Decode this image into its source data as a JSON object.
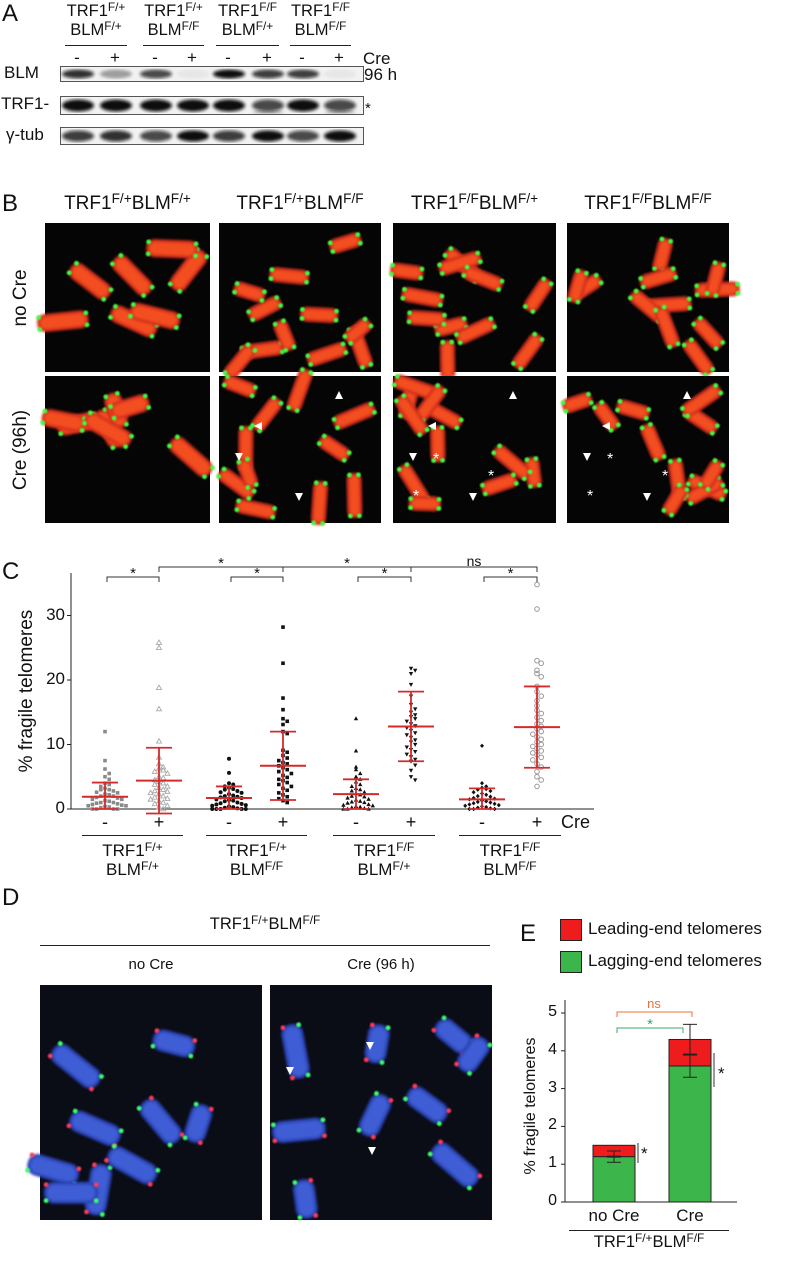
{
  "panel_labels": {
    "a": "A",
    "b": "B",
    "c": "C",
    "d": "D",
    "e": "E"
  },
  "panel_a": {
    "genotypes": [
      {
        "trf1": "TRF1",
        "trf1_sup": "F/+",
        "blm": "BLM",
        "blm_sup": "F/+"
      },
      {
        "trf1": "TRF1",
        "trf1_sup": "F/+",
        "blm": "BLM",
        "blm_sup": "F/F"
      },
      {
        "trf1": "TRF1",
        "trf1_sup": "F/F",
        "blm": "BLM",
        "blm_sup": "F/+"
      },
      {
        "trf1": "TRF1",
        "trf1_sup": "F/F",
        "blm": "BLM",
        "blm_sup": "F/F"
      }
    ],
    "cre_signs": [
      "-",
      "+"
    ],
    "cre_label": "Cre",
    "time_label": "96 h",
    "rows": [
      "BLM",
      "TRF1-",
      "γ-tub"
    ],
    "asterisk": "*"
  },
  "panel_b": {
    "genotypes": [
      {
        "trf1": "TRF1",
        "trf1_sup": "F/+",
        "blm": "BLM",
        "blm_sup": "F/+"
      },
      {
        "trf1": "TRF1",
        "trf1_sup": "F/+",
        "blm": "BLM",
        "blm_sup": "F/F"
      },
      {
        "trf1": "TRF1",
        "trf1_sup": "F/F",
        "blm": "BLM",
        "blm_sup": "F/+"
      },
      {
        "trf1": "TRF1",
        "trf1_sup": "F/F",
        "blm": "BLM",
        "blm_sup": "F/F"
      }
    ],
    "rows": [
      "no Cre",
      "Cre (96h)"
    ]
  },
  "panel_d": {
    "title": {
      "trf1": "TRF1",
      "trf1_sup": "F/+",
      "blm": "BLM",
      "blm_sup": "F/F"
    },
    "conditions": [
      "no Cre",
      "Cre (96 h)"
    ],
    "colors": {
      "dna": "#2a4fd0",
      "leading": "#ff2a3a",
      "lagging": "#2dff5a"
    }
  },
  "chart_data": [
    {
      "panel": "C",
      "type": "scatter",
      "ylabel": "% fragile telomeres",
      "xlabel": "Cre",
      "ylim": [
        0,
        37
      ],
      "yticks": [
        0,
        10,
        20,
        30
      ],
      "grid": false,
      "summary_color": "#d42a2a",
      "groups": [
        {
          "trf1": "TRF1",
          "trf1_sup": "F/+",
          "blm": "BLM",
          "blm_sup": "F/+"
        },
        {
          "trf1": "TRF1",
          "trf1_sup": "F/+",
          "blm": "BLM",
          "blm_sup": "F/F"
        },
        {
          "trf1": "TRF1",
          "trf1_sup": "F/F",
          "blm": "BLM",
          "blm_sup": "F/+"
        },
        {
          "trf1": "TRF1",
          "trf1_sup": "F/F",
          "blm": "BLM",
          "blm_sup": "F/F"
        }
      ],
      "series": [
        {
          "group": 0,
          "cre": "-",
          "marker": "square",
          "color": "#8a8a8a",
          "mean": 1.9,
          "sd_low": 0,
          "sd_high": 4.1,
          "values": [
            12,
            7.5,
            6.2,
            5.5,
            5,
            4.6,
            4,
            3.8,
            3.5,
            3.2,
            3,
            3,
            2.8,
            2.6,
            2.5,
            2.3,
            2.2,
            2,
            2,
            1.8,
            1.7,
            1.5,
            1.5,
            1.3,
            1.2,
            1,
            1,
            0.9,
            0.8,
            0.7,
            0.6,
            0.5,
            0.5,
            0.4,
            0.3,
            0.2,
            0,
            0,
            0,
            0
          ]
        },
        {
          "group": 0,
          "cre": "+",
          "marker": "open-triangle",
          "color": "#a8a8a8",
          "mean": 4.4,
          "sd_low": -0.7,
          "sd_high": 9.5,
          "values": [
            25.8,
            25,
            18.8,
            15.5,
            10.5,
            8,
            7,
            6.5,
            6.3,
            6,
            5.8,
            5.5,
            5,
            4.8,
            4.5,
            4.2,
            4,
            3.8,
            3.5,
            3.3,
            3,
            2.8,
            2.7,
            2.5,
            2.3,
            2,
            1.8,
            1.6,
            1.5,
            1.2,
            1,
            0.8,
            0.5,
            0.3,
            0
          ]
        },
        {
          "group": 1,
          "cre": "-",
          "marker": "circle",
          "color": "#111111",
          "mean": 1.7,
          "sd_low": 0,
          "sd_high": 3.5,
          "values": [
            7.8,
            5.6,
            4,
            3.8,
            3.5,
            3.3,
            3.1,
            3,
            2.8,
            2.6,
            2.5,
            2.3,
            2.1,
            2,
            1.9,
            1.8,
            1.7,
            1.5,
            1.4,
            1.3,
            1.2,
            1,
            0.9,
            0.8,
            0.7,
            0.6,
            0.5,
            0.4,
            0.3,
            0.2,
            0.1,
            0,
            0,
            0,
            0,
            0
          ]
        },
        {
          "group": 1,
          "cre": "+",
          "marker": "square",
          "color": "#111111",
          "mean": 6.7,
          "sd_low": 1.4,
          "sd_high": 12,
          "values": [
            28.2,
            22.6,
            17.2,
            15.4,
            14,
            13.6,
            13.1,
            12,
            11.7,
            9.1,
            8.8,
            8.3,
            7.9,
            7.5,
            7.2,
            7,
            6.7,
            6.4,
            6.1,
            5.8,
            5.5,
            5.2,
            4.9,
            4.6,
            4.4,
            4.1,
            3.8,
            3.5,
            3.2,
            2.9,
            2.5,
            2.2,
            1.9,
            1.6,
            1.3,
            1
          ]
        },
        {
          "group": 2,
          "cre": "-",
          "marker": "triangle",
          "color": "#111111",
          "mean": 2.3,
          "sd_low": 0,
          "sd_high": 4.6,
          "values": [
            14,
            9,
            6.5,
            6.1,
            5.5,
            5,
            4.6,
            4.2,
            3.8,
            3.5,
            3.2,
            3,
            2.8,
            2.6,
            2.4,
            2.2,
            2,
            1.9,
            1.7,
            1.5,
            1.4,
            1.2,
            1.1,
            1,
            0.9,
            0.7,
            0.6,
            0.5,
            0.4,
            0.3,
            0.2,
            0.1,
            0,
            0,
            0
          ]
        },
        {
          "group": 2,
          "cre": "+",
          "marker": "inverted-triangle",
          "color": "#111111",
          "mean": 12.8,
          "sd_low": 7.4,
          "sd_high": 18.2,
          "values": [
            21.8,
            21.5,
            21,
            19.3,
            17.5,
            16.2,
            15.5,
            15,
            14.6,
            14.3,
            14,
            13.6,
            13.2,
            12.9,
            12.6,
            12.2,
            11.8,
            11.5,
            11.1,
            10.7,
            10.4,
            10,
            9.6,
            9.2,
            8.9,
            8.5,
            8.1,
            7.7,
            7.4,
            6.8,
            6,
            5,
            4.5
          ]
        },
        {
          "group": 3,
          "cre": "-",
          "marker": "diamond",
          "color": "#111111",
          "mean": 1.5,
          "sd_low": 0,
          "sd_high": 3.2,
          "values": [
            9.8,
            4,
            3.5,
            3.3,
            3.1,
            3,
            2.8,
            2.6,
            2.4,
            2.2,
            2,
            1.9,
            1.7,
            1.6,
            1.5,
            1.3,
            1.2,
            1.1,
            1,
            0.9,
            0.8,
            0.7,
            0.6,
            0.5,
            0.4,
            0.3,
            0.2,
            0.1,
            0,
            0,
            0
          ]
        },
        {
          "group": 3,
          "cre": "+",
          "marker": "open-circle",
          "color": "#9a9a9a",
          "mean": 12.7,
          "sd_low": 6.4,
          "sd_high": 19,
          "values": [
            34.8,
            31,
            23,
            22.6,
            21.5,
            21,
            20.5,
            19,
            18.2,
            17.5,
            16.8,
            16,
            15.3,
            14.8,
            14.2,
            13.7,
            13.2,
            12.8,
            12.4,
            12,
            11.6,
            11.2,
            10.8,
            10.4,
            10,
            9.7,
            9.4,
            9,
            8.7,
            8.4,
            8,
            7.6,
            7,
            6.5,
            5.8,
            5,
            4.5,
            3.5
          ]
        }
      ],
      "significance": [
        {
          "from": 0,
          "to": 1,
          "label": "*",
          "level": 1
        },
        {
          "from": 2,
          "to": 3,
          "label": "*",
          "level": 1
        },
        {
          "from": 4,
          "to": 5,
          "label": "*",
          "level": 1
        },
        {
          "from": 6,
          "to": 7,
          "label": "*",
          "level": 1
        },
        {
          "from": 1,
          "to": 3,
          "label": "*",
          "level": 2
        },
        {
          "from": 3,
          "to": 5,
          "label": "*",
          "level": 2
        },
        {
          "from": 5,
          "to": 7,
          "label": "ns",
          "level": 2
        }
      ]
    },
    {
      "panel": "E",
      "type": "bar",
      "stacked": true,
      "ylabel": "% fragile telomeres",
      "ylim": [
        0,
        5.3
      ],
      "yticks": [
        0,
        1,
        2,
        3,
        4,
        5
      ],
      "categories": [
        "no Cre",
        "Cre"
      ],
      "group_label": {
        "trf1": "TRF1",
        "trf1_sup": "F/+",
        "blm": "BLM",
        "blm_sup": "F/F"
      },
      "legend_position": "top",
      "series": [
        {
          "name": "Lagging-end telomeres",
          "color": "#3cb54a",
          "values": [
            1.2,
            3.6
          ]
        },
        {
          "name": "Leading-end telomeres",
          "color": "#ee1c1c",
          "values": [
            0.3,
            0.7
          ]
        }
      ],
      "error_bars": [
        {
          "center": 1.2,
          "low": 1.05,
          "high": 1.35
        },
        {
          "center": 3.9,
          "low": 3.3,
          "high": 4.7
        }
      ],
      "significance": [
        {
          "between": "no Cre vs Cre (leading)",
          "label": "ns",
          "color": "#e8703a"
        },
        {
          "between": "no Cre vs Cre (lagging)",
          "label": "*",
          "color": "#3aa86a"
        },
        {
          "within": "no Cre",
          "label": "*",
          "color": "#111111"
        },
        {
          "within": "Cre",
          "label": "*",
          "color": "#111111"
        }
      ]
    }
  ]
}
